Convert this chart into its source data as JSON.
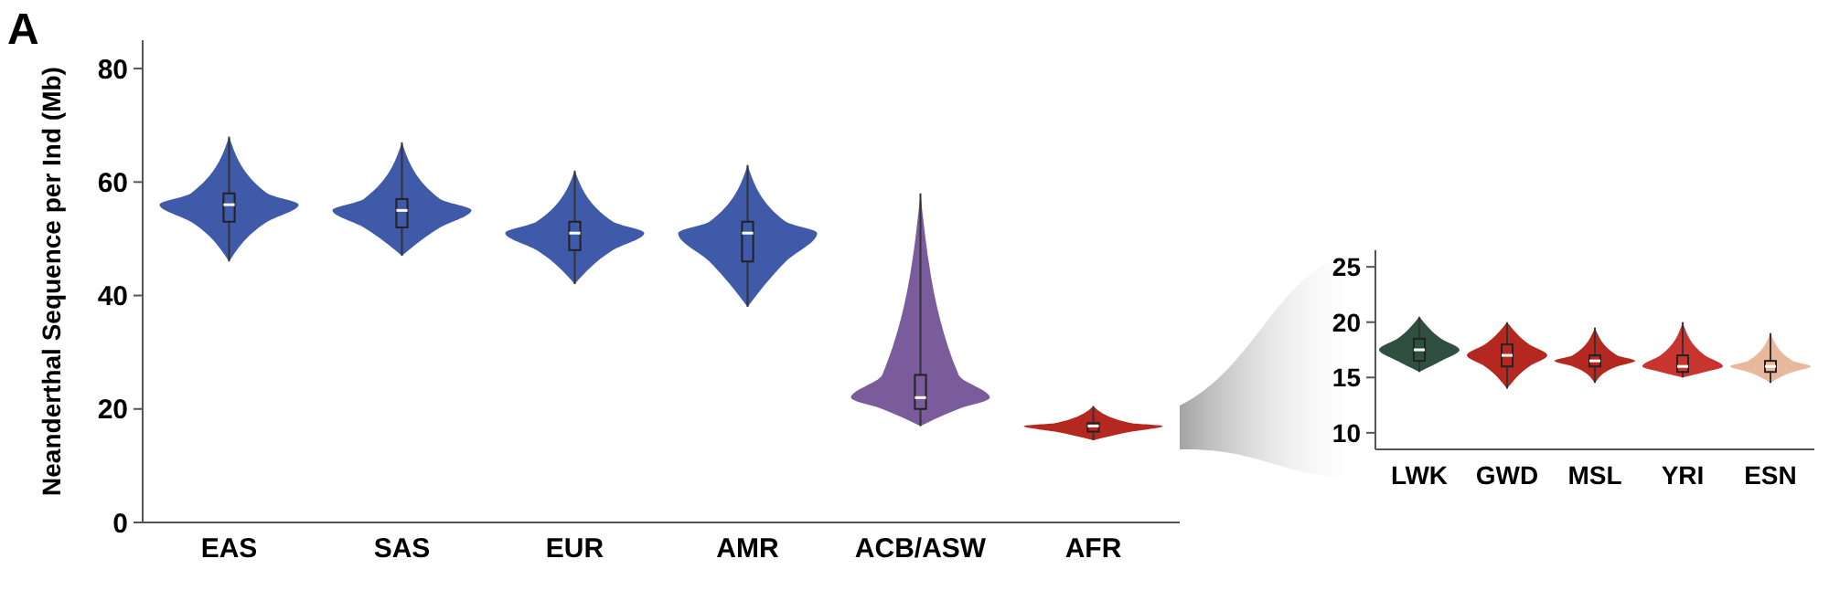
{
  "chart_data": [
    {
      "type": "box",
      "ylabel": "Neanderthal Sequence per Ind (Mb)",
      "annotations": [
        "A"
      ],
      "categories": [
        "EAS",
        "SAS",
        "EUR",
        "AMR",
        "ACB/ASW",
        "AFR"
      ],
      "ylim": [
        0,
        85
      ],
      "yticks": [
        0,
        20,
        40,
        60,
        80
      ],
      "colors": [
        "#3f5aa8",
        "#3f5aa8",
        "#3f5aa8",
        "#3f5aa8",
        "#7a5c9c",
        "#b5281f"
      ],
      "boxes": [
        {
          "low": 46,
          "q1": 53,
          "median": 56,
          "q3": 58,
          "high": 68
        },
        {
          "low": 47,
          "q1": 52,
          "median": 55,
          "q3": 57,
          "high": 67
        },
        {
          "low": 42,
          "q1": 48,
          "median": 51,
          "q3": 53,
          "high": 62
        },
        {
          "low": 38,
          "q1": 46,
          "median": 51,
          "q3": 53,
          "high": 63
        },
        {
          "low": 17,
          "q1": 20,
          "median": 22,
          "q3": 26,
          "high": 58
        },
        {
          "low": 14.5,
          "q1": 16,
          "median": 17,
          "q3": 17.5,
          "high": 20.5
        }
      ]
    },
    {
      "type": "box",
      "categories": [
        "LWK",
        "GWD",
        "MSL",
        "YRI",
        "ESN"
      ],
      "ylim": [
        8.5,
        26.5
      ],
      "yticks": [
        10,
        15,
        20,
        25
      ],
      "colors": [
        "#2f4f3f",
        "#b5281f",
        "#b5281f",
        "#c8352f",
        "#e8b89c"
      ],
      "boxes": [
        {
          "low": 15.5,
          "q1": 16.5,
          "median": 17.5,
          "q3": 18.5,
          "high": 20.5
        },
        {
          "low": 14,
          "q1": 16,
          "median": 17,
          "q3": 18,
          "high": 20
        },
        {
          "low": 14.5,
          "q1": 16,
          "median": 16.5,
          "q3": 17,
          "high": 19.5
        },
        {
          "low": 15,
          "q1": 15.5,
          "median": 16,
          "q3": 17,
          "high": 20
        },
        {
          "low": 14.5,
          "q1": 15.5,
          "median": 16,
          "q3": 16.5,
          "high": 19
        }
      ]
    }
  ]
}
